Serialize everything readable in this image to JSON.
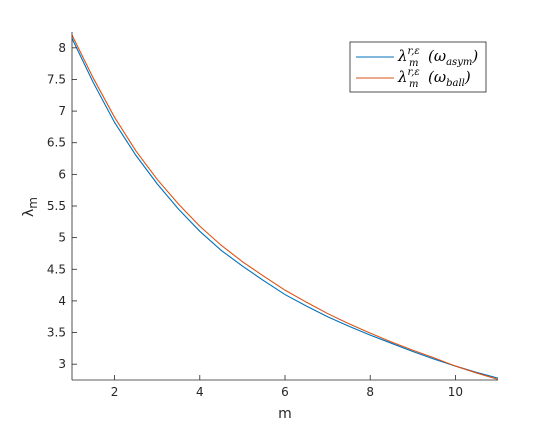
{
  "chart_data": {
    "type": "line",
    "title": "",
    "xlabel": "m",
    "ylabel": "λ",
    "ylabel_sub": "m",
    "xlim": [
      1,
      11
    ],
    "ylim": [
      2.75,
      8.25
    ],
    "xticks": [
      "2",
      "4",
      "6",
      "8",
      "10"
    ],
    "yticks": [
      "3",
      "3.5",
      "4",
      "4.5",
      "5",
      "5.5",
      "6",
      "6.5",
      "7",
      "7.5",
      "8"
    ],
    "grid": false,
    "legend_position": "top-right",
    "series": [
      {
        "name": "λ_m^{r,ε}(ω_asym)",
        "color": "#0072BD",
        "x": [
          1,
          1.5,
          2,
          2.5,
          3,
          3.5,
          4,
          4.5,
          5,
          5.5,
          6,
          6.5,
          7,
          7.5,
          8,
          8.5,
          9,
          9.5,
          10,
          10.5,
          11
        ],
        "y": [
          8.15,
          7.45,
          6.82,
          6.3,
          5.85,
          5.45,
          5.1,
          4.8,
          4.55,
          4.32,
          4.1,
          3.92,
          3.75,
          3.6,
          3.46,
          3.33,
          3.2,
          3.08,
          2.97,
          2.87,
          2.78
        ]
      },
      {
        "name": "λ_m^{r,ε}(ω_ball)",
        "color": "#D95319",
        "x": [
          1,
          1.5,
          2,
          2.5,
          3,
          3.5,
          4,
          4.5,
          5,
          5.5,
          6,
          6.5,
          7,
          7.5,
          8,
          8.5,
          9,
          9.5,
          10,
          10.5,
          11
        ],
        "y": [
          8.2,
          7.52,
          6.9,
          6.37,
          5.92,
          5.53,
          5.18,
          4.88,
          4.62,
          4.39,
          4.17,
          3.98,
          3.8,
          3.64,
          3.49,
          3.35,
          3.22,
          3.1,
          2.97,
          2.86,
          2.76
        ]
      }
    ]
  },
  "legend": {
    "entries": [
      {
        "base": "λ",
        "sup": "r,ε",
        "sub": "m",
        "arg": "(ω",
        "argsub": "asym",
        "close": ")"
      },
      {
        "base": "λ",
        "sup": "r,ε",
        "sub": "m",
        "arg": "(ω",
        "argsub": "ball",
        "close": ")"
      }
    ]
  }
}
